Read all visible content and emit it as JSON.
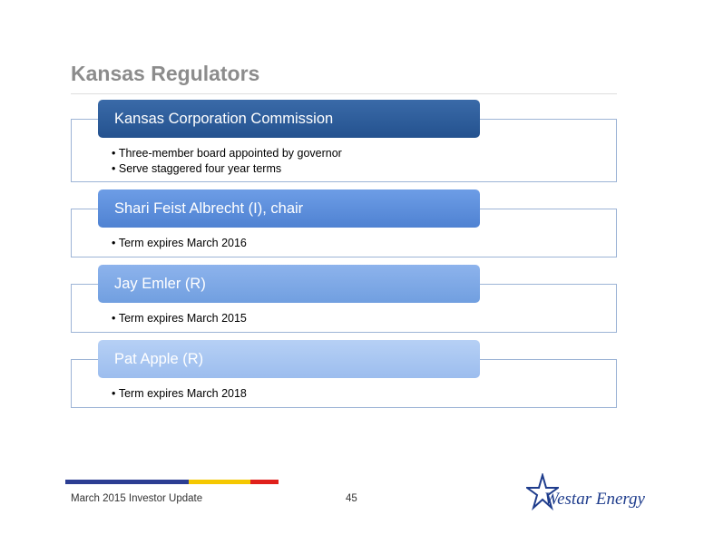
{
  "header": {
    "title": "Kansas Regulators"
  },
  "sections": [
    {
      "heading": "Kansas Corporation Commission",
      "bullets": [
        "Three-member board appointed by governor",
        "Serve staggered four year terms"
      ]
    },
    {
      "heading": "Shari Feist Albrecht (I), chair",
      "bullets": [
        "Term expires March 2016"
      ]
    },
    {
      "heading": "Jay Emler (R)",
      "bullets": [
        "Term expires March 2015"
      ]
    },
    {
      "heading": "Pat Apple (R)",
      "bullets": [
        "Term expires March 2018"
      ]
    }
  ],
  "footer": {
    "left": "March 2015 Investor Update",
    "page": "45",
    "logo": "Westar Energy"
  }
}
